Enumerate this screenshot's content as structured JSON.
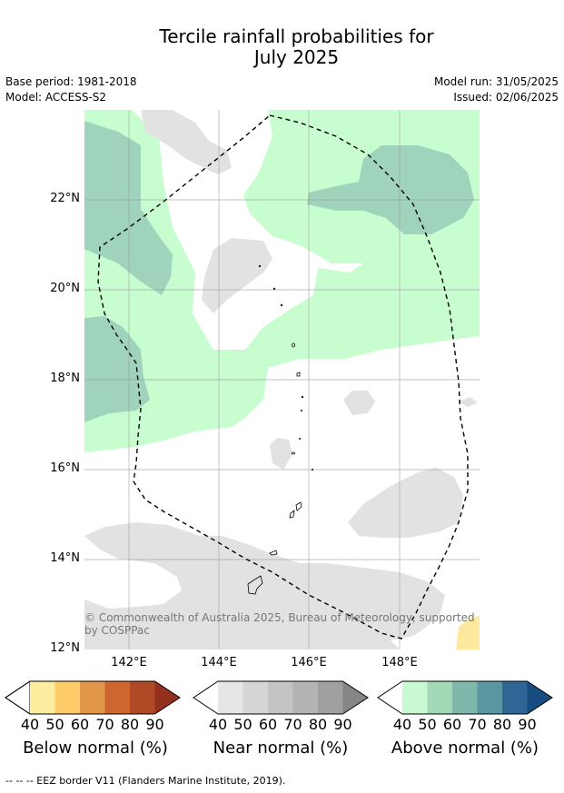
{
  "header": {
    "title_line1": "Tercile rainfall probabilities for",
    "title_line2": "July 2025",
    "base_period": "Base period: 1981-2018",
    "model": "Model: ACCESS-S2",
    "model_run": "Model run: 31/05/2025",
    "issued": "Issued: 02/06/2025"
  },
  "map": {
    "y_ticks": [
      "22°N",
      "20°N",
      "18°N",
      "16°N",
      "14°N",
      "12°N"
    ],
    "x_ticks": [
      "142°E",
      "144°E",
      "146°E",
      "148°E"
    ],
    "copyright_line1": "© Commonwealth of Australia 2025, Bureau of Meteorology, supported",
    "copyright_line2": "by COSPPac",
    "colors": {
      "ocean": "#ffffff",
      "above_40": "#c8fdd0",
      "above_60": "#9fd3bc",
      "near_40": "#e2e2e2",
      "below_40": "#fde99d",
      "eez_border": "#000000"
    }
  },
  "colorbars": [
    {
      "label": "Below normal (%)",
      "ticks": [
        "40",
        "50",
        "60",
        "70",
        "80",
        "90"
      ],
      "colors": [
        "#fdee9f",
        "#fdcc69",
        "#e19649",
        "#d0662f",
        "#b04a26",
        "#94301e"
      ]
    },
    {
      "label": "Near normal (%)",
      "ticks": [
        "40",
        "50",
        "60",
        "70",
        "80",
        "90"
      ],
      "colors": [
        "#e6e6e6",
        "#d5d5d5",
        "#c4c4c4",
        "#b3b3b3",
        "#a0a0a0",
        "#868686"
      ]
    },
    {
      "label": "Above normal (%)",
      "ticks": [
        "40",
        "50",
        "60",
        "70",
        "80",
        "90"
      ],
      "colors": [
        "#c9fad2",
        "#a3d9b7",
        "#7fb8ab",
        "#5b96a3",
        "#2f6696",
        "#164c80"
      ]
    }
  ],
  "footer": {
    "eez_note": "--  --  -- EEZ border V11 (Flanders Marine Institute, 2019)."
  }
}
